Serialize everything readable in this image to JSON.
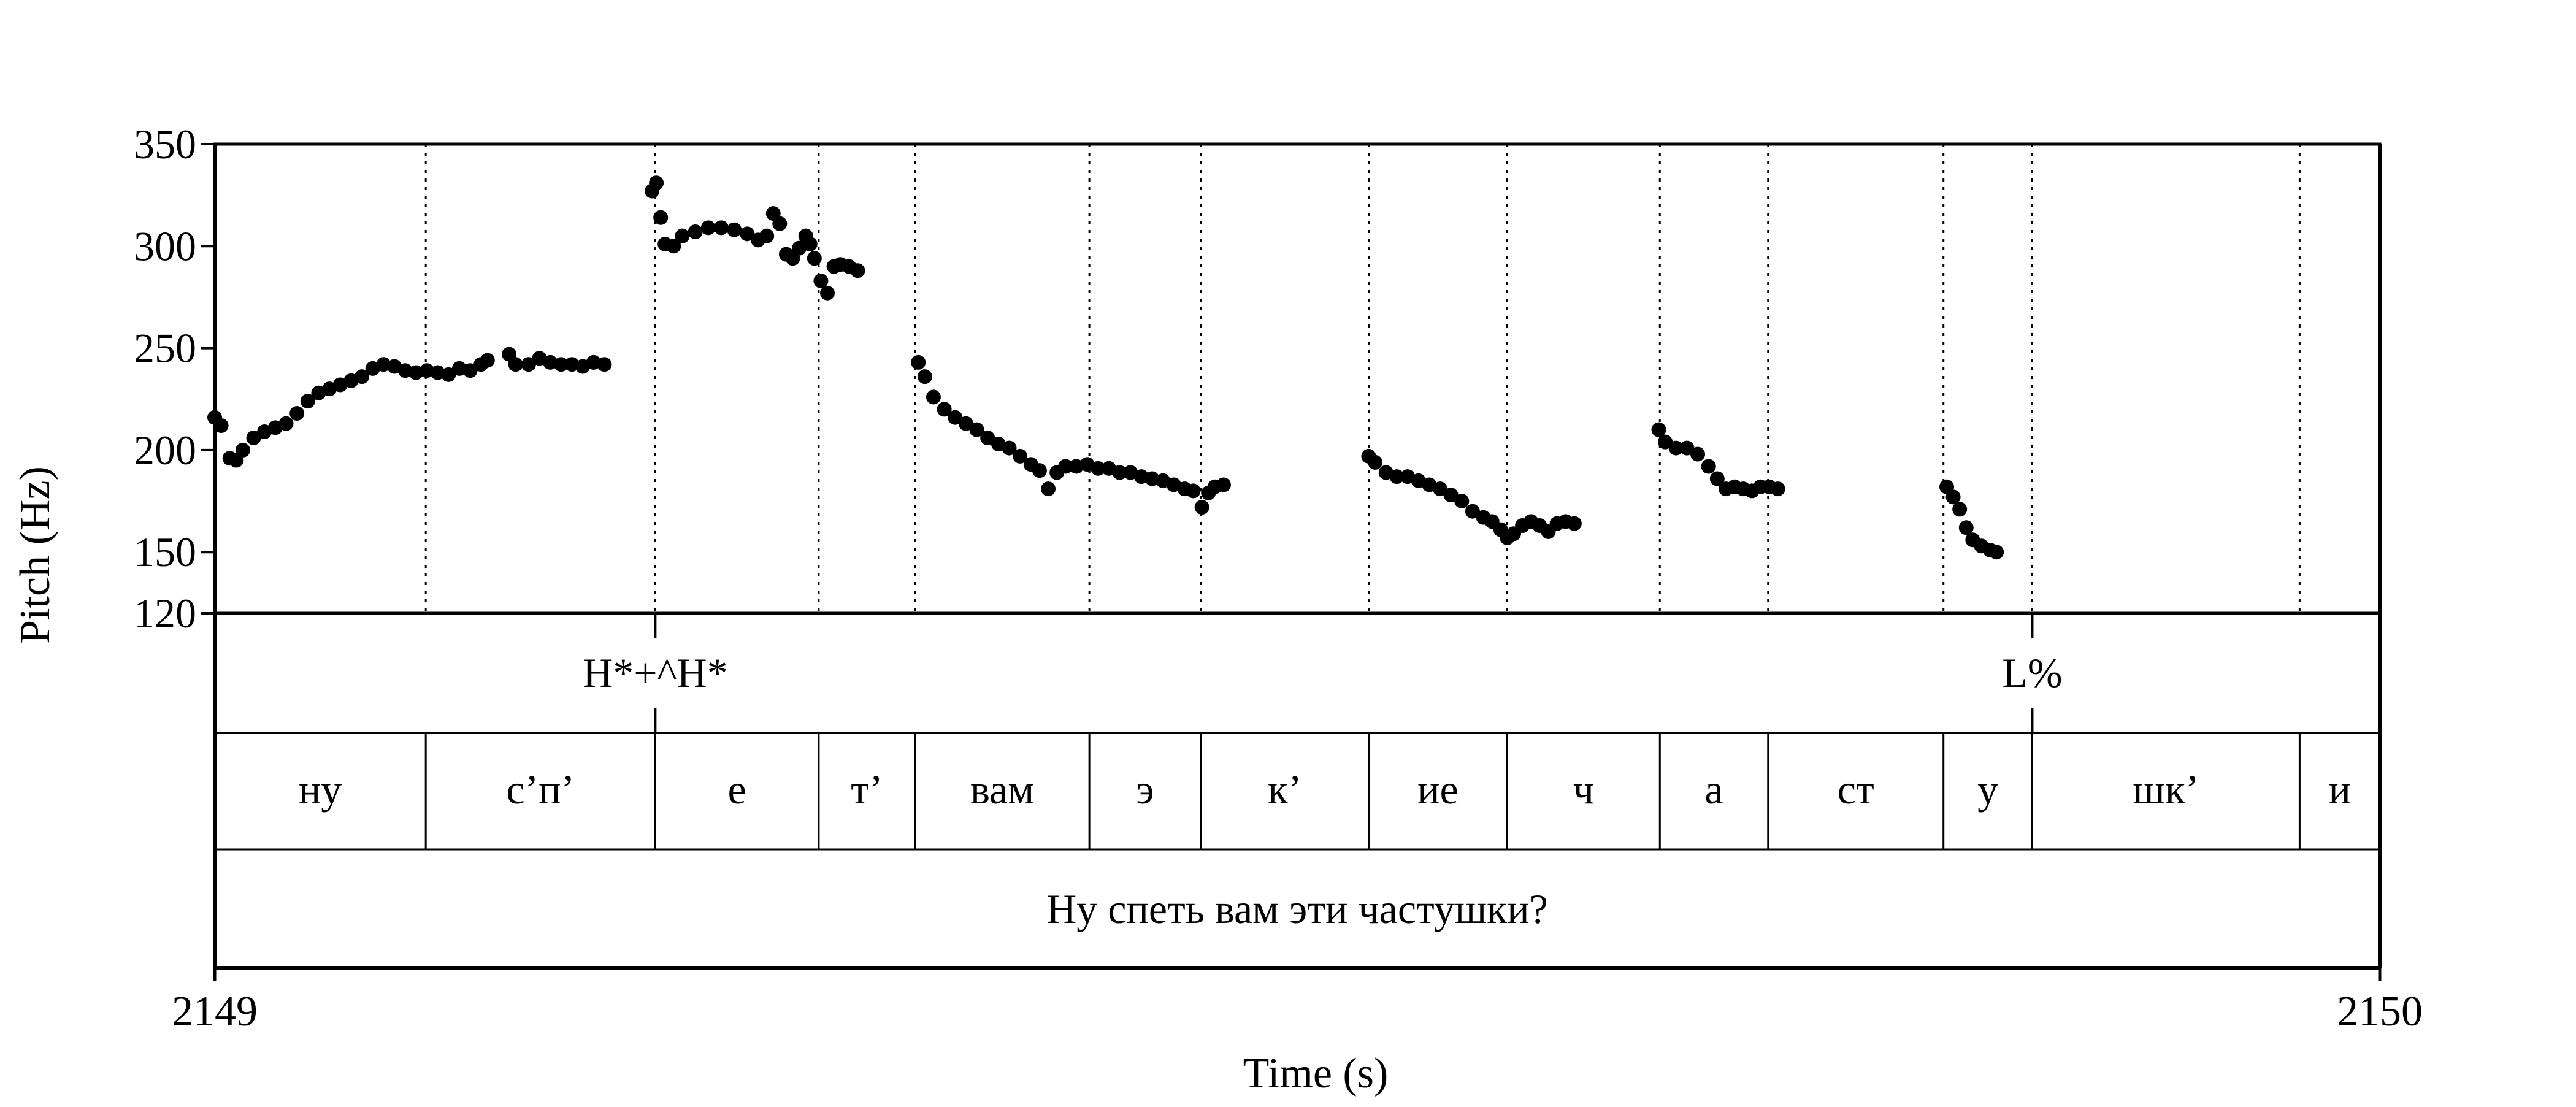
{
  "chart_data": {
    "type": "scatter",
    "title": "",
    "xlabel": "Time (s)",
    "ylabel": "Pitch (Hz)",
    "xlim": [
      2149,
      2150
    ],
    "ylim": [
      120,
      350
    ],
    "x_ticks": [
      "2149",
      "2150"
    ],
    "y_ticks": [
      {
        "value": 350,
        "label": "350"
      },
      {
        "value": 300,
        "label": "300"
      },
      {
        "value": 250,
        "label": "250"
      },
      {
        "value": 200,
        "label": "200"
      },
      {
        "value": 150,
        "label": "150"
      },
      {
        "value": 120,
        "label": "120"
      }
    ],
    "boundaries": [
      2149.0975,
      2149.2035,
      2149.279,
      2149.3235,
      2149.404,
      2149.4555,
      2149.533,
      2149.597,
      2149.6675,
      2149.7175,
      2149.7985,
      2149.8395,
      2149.963
    ],
    "pitch_segments": [
      [
        [
          2149.0,
          216
        ],
        [
          2149.003,
          212
        ],
        [
          2149.007,
          196
        ],
        [
          2149.01,
          195
        ],
        [
          2149.013,
          200
        ],
        [
          2149.018,
          206
        ],
        [
          2149.023,
          209
        ],
        [
          2149.028,
          211
        ],
        [
          2149.033,
          213
        ],
        [
          2149.038,
          218
        ],
        [
          2149.043,
          224
        ],
        [
          2149.048,
          228
        ],
        [
          2149.053,
          230
        ],
        [
          2149.058,
          232
        ],
        [
          2149.063,
          234
        ],
        [
          2149.068,
          236
        ],
        [
          2149.073,
          240
        ],
        [
          2149.078,
          242
        ],
        [
          2149.083,
          241
        ],
        [
          2149.088,
          239
        ],
        [
          2149.093,
          238
        ],
        [
          2149.098,
          239
        ],
        [
          2149.103,
          238
        ],
        [
          2149.108,
          237
        ],
        [
          2149.113,
          240
        ],
        [
          2149.118,
          239
        ],
        [
          2149.123,
          242
        ],
        [
          2149.126,
          244
        ]
      ],
      [
        [
          2149.136,
          247
        ],
        [
          2149.139,
          242
        ],
        [
          2149.145,
          242
        ],
        [
          2149.15,
          245
        ],
        [
          2149.155,
          243
        ],
        [
          2149.16,
          242
        ],
        [
          2149.165,
          242
        ],
        [
          2149.17,
          241
        ],
        [
          2149.175,
          243
        ],
        [
          2149.18,
          242
        ]
      ],
      [
        [
          2149.202,
          327
        ],
        [
          2149.204,
          331
        ],
        [
          2149.206,
          314
        ],
        [
          2149.208,
          301
        ],
        [
          2149.212,
          300
        ],
        [
          2149.216,
          305
        ],
        [
          2149.222,
          307
        ],
        [
          2149.228,
          309
        ],
        [
          2149.234,
          309
        ],
        [
          2149.24,
          308
        ],
        [
          2149.246,
          306
        ],
        [
          2149.251,
          303
        ],
        [
          2149.255,
          305
        ],
        [
          2149.258,
          316
        ],
        [
          2149.261,
          311
        ],
        [
          2149.264,
          296
        ],
        [
          2149.267,
          294
        ],
        [
          2149.27,
          299
        ],
        [
          2149.273,
          305
        ],
        [
          2149.275,
          301
        ],
        [
          2149.277,
          294
        ],
        [
          2149.28,
          283
        ],
        [
          2149.283,
          277
        ],
        [
          2149.286,
          290
        ],
        [
          2149.289,
          291
        ],
        [
          2149.293,
          290
        ],
        [
          2149.297,
          288
        ]
      ],
      [
        [
          2149.325,
          243
        ],
        [
          2149.328,
          236
        ],
        [
          2149.332,
          226
        ],
        [
          2149.337,
          220
        ],
        [
          2149.342,
          216
        ],
        [
          2149.347,
          213
        ],
        [
          2149.352,
          210
        ],
        [
          2149.357,
          206
        ],
        [
          2149.362,
          203
        ],
        [
          2149.367,
          201
        ],
        [
          2149.372,
          197
        ],
        [
          2149.377,
          193
        ],
        [
          2149.381,
          190
        ],
        [
          2149.385,
          181
        ],
        [
          2149.389,
          189
        ],
        [
          2149.393,
          192
        ],
        [
          2149.398,
          192
        ],
        [
          2149.403,
          193
        ],
        [
          2149.408,
          191
        ],
        [
          2149.413,
          191
        ],
        [
          2149.418,
          189
        ],
        [
          2149.423,
          189
        ],
        [
          2149.428,
          187
        ],
        [
          2149.433,
          186
        ],
        [
          2149.438,
          185
        ],
        [
          2149.443,
          183
        ],
        [
          2149.448,
          181
        ],
        [
          2149.452,
          180
        ],
        [
          2149.456,
          172
        ],
        [
          2149.459,
          179
        ],
        [
          2149.462,
          182
        ],
        [
          2149.466,
          183
        ]
      ],
      [
        [
          2149.533,
          197
        ],
        [
          2149.536,
          194
        ],
        [
          2149.541,
          189
        ],
        [
          2149.546,
          187
        ],
        [
          2149.551,
          187
        ],
        [
          2149.556,
          185
        ],
        [
          2149.561,
          183
        ],
        [
          2149.566,
          181
        ],
        [
          2149.571,
          178
        ],
        [
          2149.576,
          175
        ],
        [
          2149.581,
          170
        ],
        [
          2149.586,
          167
        ],
        [
          2149.59,
          165
        ],
        [
          2149.594,
          161
        ],
        [
          2149.597,
          157
        ],
        [
          2149.6,
          159
        ],
        [
          2149.604,
          163
        ],
        [
          2149.608,
          165
        ],
        [
          2149.612,
          163
        ],
        [
          2149.616,
          160
        ],
        [
          2149.62,
          164
        ],
        [
          2149.624,
          165
        ],
        [
          2149.628,
          164
        ]
      ],
      [
        [
          2149.667,
          210
        ],
        [
          2149.67,
          204
        ],
        [
          2149.675,
          201
        ],
        [
          2149.68,
          201
        ],
        [
          2149.685,
          198
        ],
        [
          2149.69,
          192
        ],
        [
          2149.694,
          186
        ],
        [
          2149.698,
          181
        ],
        [
          2149.702,
          182
        ],
        [
          2149.706,
          181
        ],
        [
          2149.71,
          180
        ],
        [
          2149.714,
          182
        ],
        [
          2149.718,
          182
        ],
        [
          2149.722,
          181
        ]
      ],
      [
        [
          2149.8,
          182
        ],
        [
          2149.803,
          177
        ],
        [
          2149.806,
          171
        ],
        [
          2149.809,
          162
        ],
        [
          2149.812,
          156
        ],
        [
          2149.816,
          153
        ],
        [
          2149.82,
          151
        ],
        [
          2149.823,
          150
        ]
      ]
    ],
    "tone_tier": [
      {
        "time": 2149.2035,
        "label": "H*+^H*"
      },
      {
        "time": 2149.8395,
        "label": "L%"
      }
    ],
    "segment_tier": [
      {
        "start": 2149.0,
        "end": 2149.0975,
        "label": "ну"
      },
      {
        "start": 2149.0975,
        "end": 2149.2035,
        "label": "с’п’"
      },
      {
        "start": 2149.2035,
        "end": 2149.279,
        "label": "е"
      },
      {
        "start": 2149.279,
        "end": 2149.3235,
        "label": "т’"
      },
      {
        "start": 2149.3235,
        "end": 2149.404,
        "label": "вам"
      },
      {
        "start": 2149.404,
        "end": 2149.4555,
        "label": "э"
      },
      {
        "start": 2149.4555,
        "end": 2149.533,
        "label": "к’"
      },
      {
        "start": 2149.533,
        "end": 2149.597,
        "label": "ие"
      },
      {
        "start": 2149.597,
        "end": 2149.6675,
        "label": "ч"
      },
      {
        "start": 2149.6675,
        "end": 2149.7175,
        "label": "а"
      },
      {
        "start": 2149.7175,
        "end": 2149.7985,
        "label": "ст"
      },
      {
        "start": 2149.7985,
        "end": 2149.8395,
        "label": "у"
      },
      {
        "start": 2149.8395,
        "end": 2149.963,
        "label": "шк’"
      },
      {
        "start": 2149.963,
        "end": 2150.0,
        "label": "и"
      }
    ],
    "sentence_tier": [
      {
        "start": 2149.0,
        "end": 2150.0,
        "label": "Ну спеть вам эти частушки?"
      }
    ],
    "grid": false,
    "legend": "none"
  }
}
